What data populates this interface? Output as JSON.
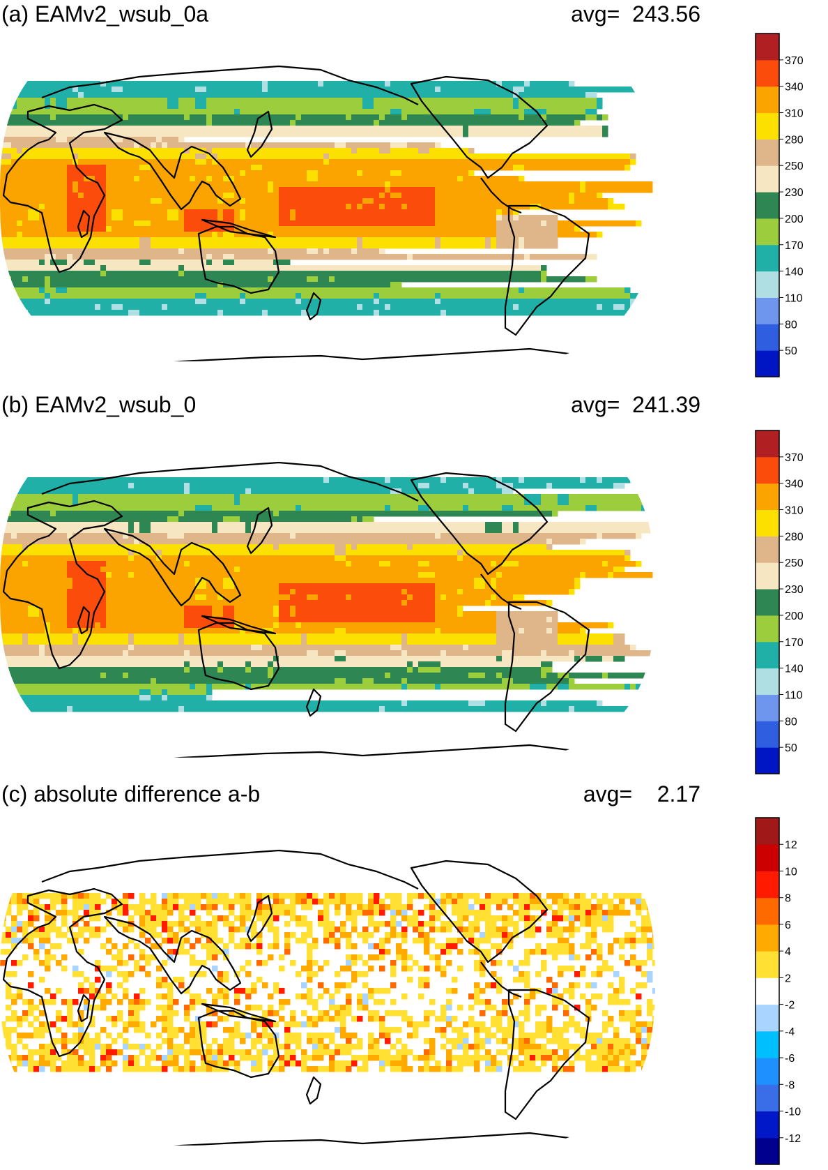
{
  "panels": [
    {
      "id": "a",
      "title": "(a) EAMv2_wsub_0a",
      "avg_label": "avg=",
      "avg_value": "243.56",
      "colorbar": {
        "colors": [
          "#0015c4",
          "#2f5fe0",
          "#6f96ee",
          "#b0dfe3",
          "#21b0a8",
          "#9ccd3c",
          "#2e8753",
          "#f6e7c2",
          "#dfb68a",
          "#fbe000",
          "#fba400",
          "#fb4c0b",
          "#b01f22"
        ],
        "labels": [
          "50",
          "80",
          "110",
          "140",
          "170",
          "200",
          "230",
          "250",
          "280",
          "310",
          "340",
          "370"
        ]
      }
    },
    {
      "id": "b",
      "title": "(b) EAMv2_wsub_0",
      "avg_label": "avg=",
      "avg_value": "241.39",
      "colorbar": {
        "colors": [
          "#0015c4",
          "#2f5fe0",
          "#6f96ee",
          "#b0dfe3",
          "#21b0a8",
          "#9ccd3c",
          "#2e8753",
          "#f6e7c2",
          "#dfb68a",
          "#fbe000",
          "#fba400",
          "#fb4c0b",
          "#b01f22"
        ],
        "labels": [
          "50",
          "80",
          "110",
          "140",
          "170",
          "200",
          "230",
          "250",
          "280",
          "310",
          "340",
          "370"
        ]
      }
    },
    {
      "id": "c",
      "title": "(c) absolute difference a-b",
      "avg_label": "avg=",
      "avg_value": "2.17",
      "colorbar": {
        "colors": [
          "#00008f",
          "#0018c8",
          "#3a6ee8",
          "#1e90ff",
          "#00bfff",
          "#a8d4ff",
          "#ffffff",
          "#ffe033",
          "#ffaa00",
          "#ff6a00",
          "#ff1a00",
          "#cc0000",
          "#a01818"
        ],
        "labels": [
          "-12",
          "-10",
          "-8",
          "-6",
          "-4",
          "-2",
          "2",
          "4",
          "6",
          "8",
          "10",
          "12"
        ]
      }
    }
  ]
}
